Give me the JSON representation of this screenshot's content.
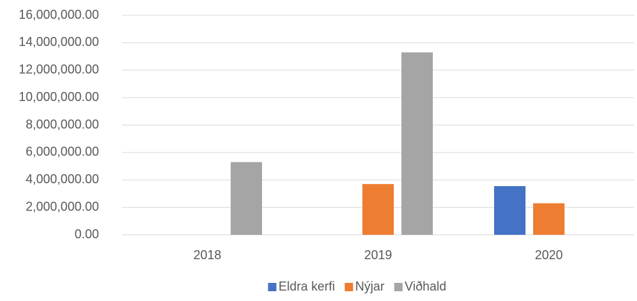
{
  "chart_data": {
    "type": "bar",
    "categories": [
      "2018",
      "2019",
      "2020"
    ],
    "series": [
      {
        "name": "Eldra kerfi",
        "color": "#4472c4",
        "values": [
          0,
          0,
          3550000
        ]
      },
      {
        "name": "Nýjar",
        "color": "#ed7d31",
        "values": [
          0,
          3700000,
          2300000
        ]
      },
      {
        "name": "Viðhald",
        "color": "#a5a5a5",
        "values": [
          5300000,
          13300000,
          0
        ]
      }
    ],
    "ylim": [
      0,
      16000000
    ],
    "yticks": [
      {
        "value": 0,
        "label": "0.00"
      },
      {
        "value": 2000000,
        "label": "2,000,000.00"
      },
      {
        "value": 4000000,
        "label": "4,000,000.00"
      },
      {
        "value": 6000000,
        "label": "6,000,000.00"
      },
      {
        "value": 8000000,
        "label": "8,000,000.00"
      },
      {
        "value": 10000000,
        "label": "10,000,000.00"
      },
      {
        "value": 12000000,
        "label": "12,000,000.00"
      },
      {
        "value": 14000000,
        "label": "14,000,000.00"
      },
      {
        "value": 16000000,
        "label": "16,000,000.00"
      }
    ],
    "grid": true,
    "legend": "bottom"
  }
}
